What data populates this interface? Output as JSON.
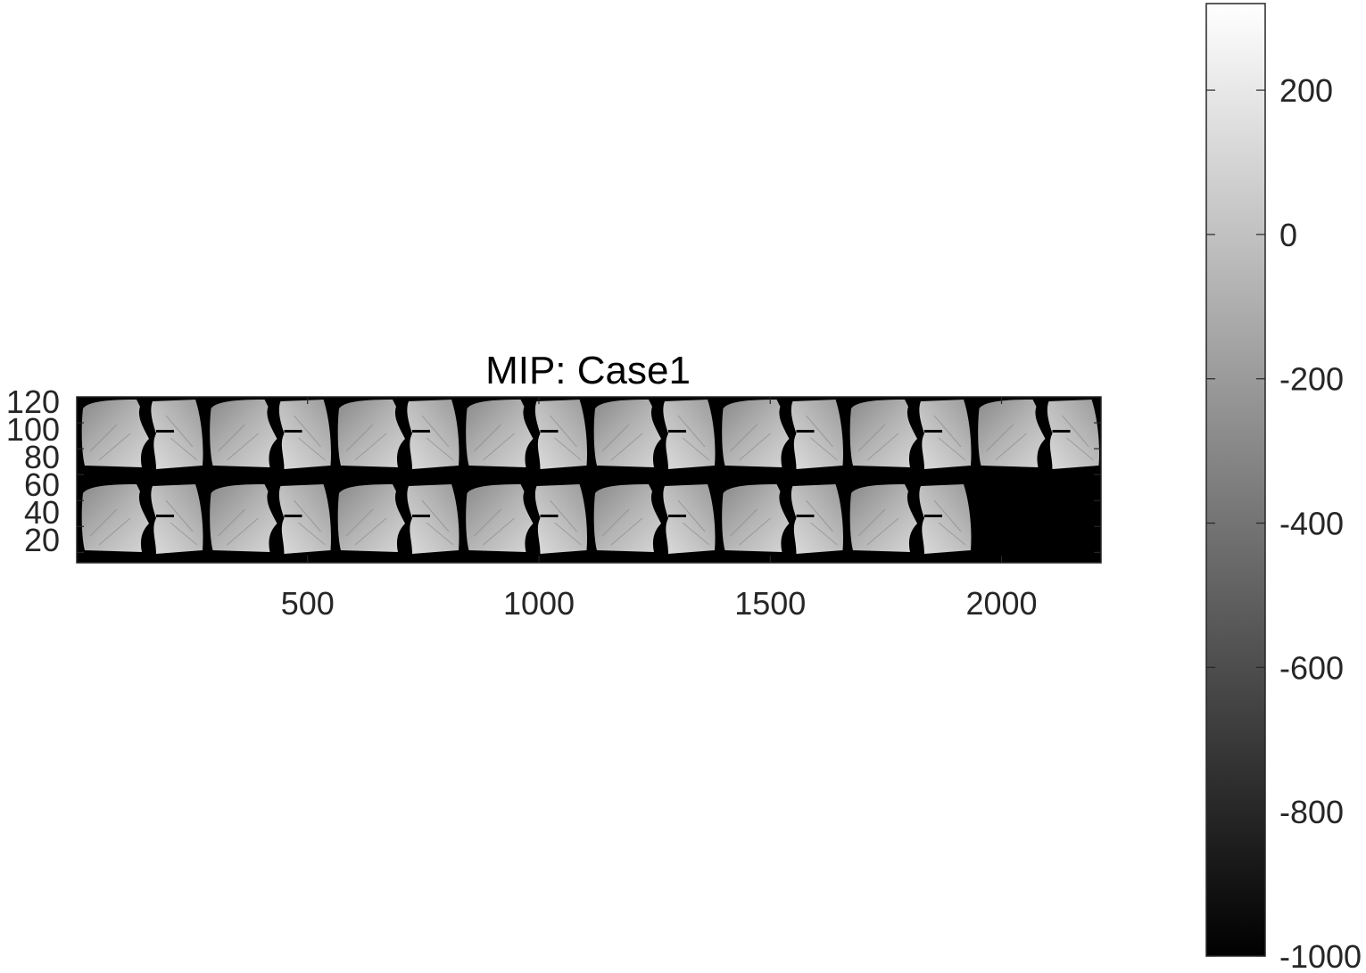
{
  "chart_data": {
    "type": "heatmap",
    "title": "MIP: Case1",
    "xlabel": "",
    "ylabel": "",
    "xlim": [
      1,
      2215
    ],
    "ylim": [
      0,
      128
    ],
    "y_direction": "reversed",
    "xticks": [
      500,
      1000,
      1500,
      2000
    ],
    "yticks": [
      20,
      40,
      60,
      80,
      100,
      120
    ],
    "grid": false,
    "colormap": "gray",
    "montage": {
      "rows": 2,
      "tiles_row1": 8,
      "tiles_row2": 7,
      "empty_tiles": 1
    },
    "colorbar": {
      "location": "right",
      "clim": [
        -1000,
        320
      ],
      "ticks": [
        200,
        0,
        -200,
        -400,
        -600,
        -800,
        -1000
      ]
    }
  },
  "colors": {
    "background": "#ffffff",
    "axis_frame": "#262626",
    "image_background": "#000000"
  }
}
